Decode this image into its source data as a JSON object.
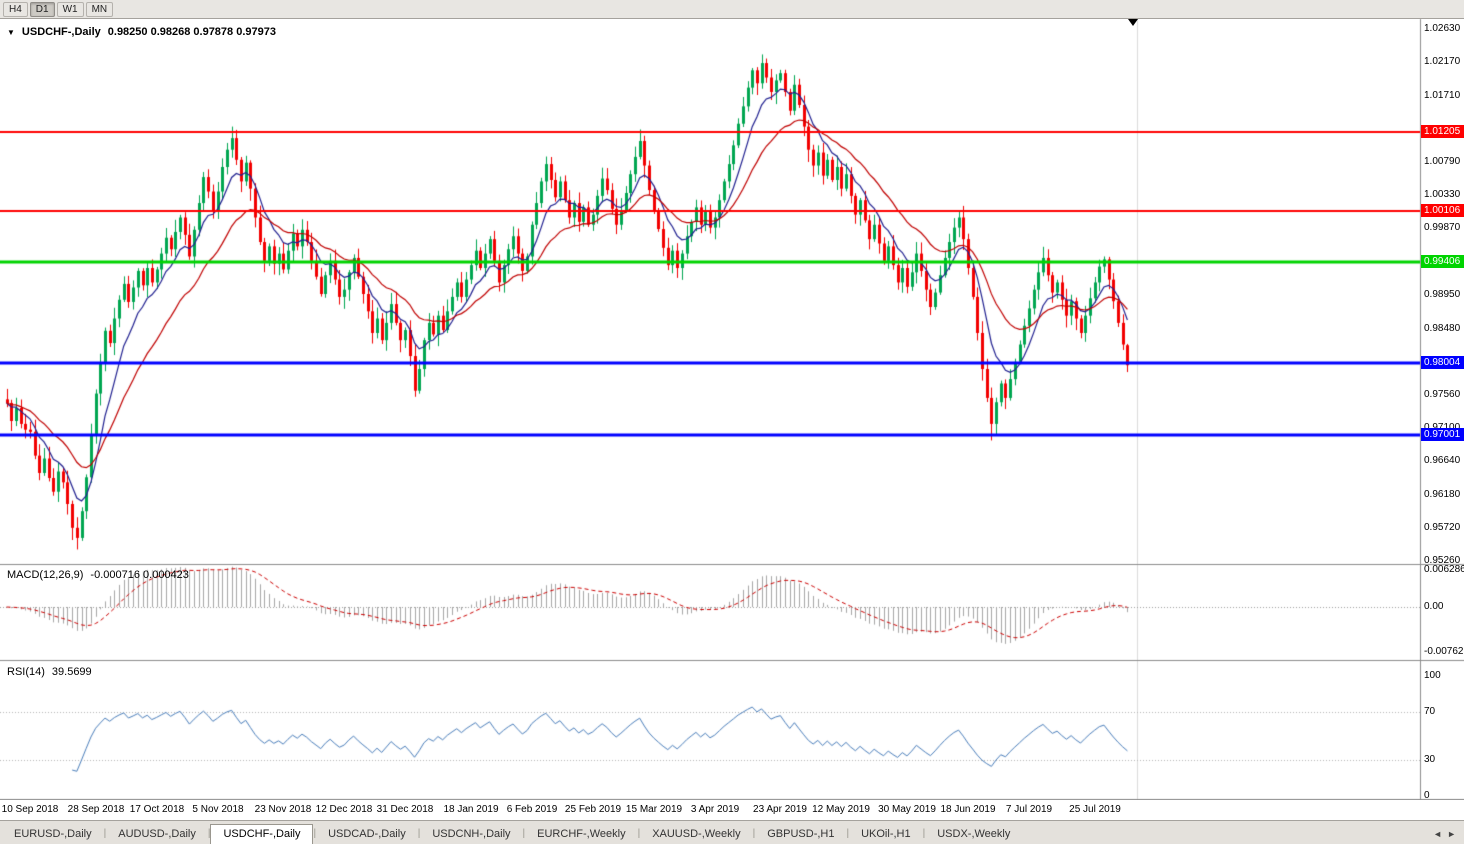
{
  "toolbar": {
    "buttons": [
      {
        "label": "H4",
        "active": false
      },
      {
        "label": "D1",
        "active": true
      },
      {
        "label": "W1",
        "active": false
      },
      {
        "label": "MN",
        "active": false
      }
    ]
  },
  "chart_header": {
    "collapse_icon": "▼",
    "symbol": "USDCHF-,Daily",
    "ohlc": "0.98250 0.98268 0.97878 0.97973"
  },
  "macd_panel": {
    "title": "MACD(12,26,9)",
    "values": "-0.000716 0.000423",
    "axis_labels": [
      "0.006286",
      "0.00",
      "-0.00762"
    ],
    "axis_values": [
      0.006286,
      0,
      -0.00762
    ]
  },
  "rsi_panel": {
    "title": "RSI(14)",
    "value": "39.5699",
    "axis_labels": [
      "100",
      "70",
      "30",
      "0"
    ],
    "axis_values": [
      100,
      70,
      30,
      0
    ]
  },
  "price_axis": {
    "labels": [
      "1.02630",
      "1.02170",
      "1.01710",
      "1.00790",
      "1.00330",
      "0.99870",
      "0.98950",
      "0.98480",
      "0.97560",
      "0.97100",
      "0.96640",
      "0.96180",
      "0.95720",
      "0.95260"
    ]
  },
  "date_axis": {
    "labels": [
      "10 Sep 2018",
      "28 Sep 2018",
      "17 Oct 2018",
      "5 Nov 2018",
      "23 Nov 2018",
      "12 Dec 2018",
      "31 Dec 2018",
      "18 Jan 2019",
      "6 Feb 2019",
      "25 Feb 2019",
      "15 Mar 2019",
      "3 Apr 2019",
      "23 Apr 2019",
      "12 May 2019",
      "30 May 2019",
      "18 Jun 2019",
      "7 Jul 2019",
      "25 Jul 2019"
    ]
  },
  "tabs": {
    "items": [
      {
        "label": "EURUSD-,Daily",
        "active": false
      },
      {
        "label": "AUDUSD-,Daily",
        "active": false
      },
      {
        "label": "USDCHF-,Daily",
        "active": true
      },
      {
        "label": "USDCAD-,Daily",
        "active": false
      },
      {
        "label": "USDCNH-,Daily",
        "active": false
      },
      {
        "label": "EURCHF-,Weekly",
        "active": false
      },
      {
        "label": "XAUUSD-,Weekly",
        "active": false
      },
      {
        "label": "GBPUSD-,H1",
        "active": false
      },
      {
        "label": "UKOil-,H1",
        "active": false
      },
      {
        "label": "USDX-,Weekly",
        "active": false
      }
    ],
    "scroll_left_icon": "◄",
    "scroll_right_icon": "►"
  },
  "chart_data": {
    "type": "candlestick",
    "symbol": "USDCHF",
    "timeframe": "Daily",
    "title": "USDCHF-,Daily",
    "first_open": 0.975,
    "closes": [
      0.9745,
      0.972,
      0.9738,
      0.9716,
      0.9708,
      0.9705,
      0.9672,
      0.9648,
      0.9668,
      0.9641,
      0.9622,
      0.965,
      0.9635,
      0.9605,
      0.9572,
      0.9558,
      0.9595,
      0.9642,
      0.97,
      0.9758,
      0.98,
      0.9845,
      0.9828,
      0.9862,
      0.9888,
      0.991,
      0.9885,
      0.9905,
      0.9928,
      0.9908,
      0.9932,
      0.9912,
      0.993,
      0.9952,
      0.9974,
      0.9958,
      0.9982,
      1.0002,
      0.9978,
      0.9948,
      0.9985,
      1.0022,
      1.0058,
      1.0038,
      1.0012,
      1.0038,
      1.0072,
      1.0096,
      1.0112,
      1.0082,
      1.0052,
      1.0078,
      1.0042,
      1.0002,
      0.9968,
      0.9942,
      0.9962,
      0.9938,
      0.9952,
      0.993,
      0.9956,
      0.998,
      0.9962,
      0.9985,
      0.9968,
      0.9942,
      0.992,
      0.9896,
      0.9922,
      0.9942,
      0.9916,
      0.9892,
      0.9902,
      0.9926,
      0.9946,
      0.992,
      0.9896,
      0.9872,
      0.9842,
      0.9862,
      0.9832,
      0.9856,
      0.9882,
      0.9856,
      0.9832,
      0.9846,
      0.981,
      0.9762,
      0.9792,
      0.9832,
      0.9856,
      0.984,
      0.9866,
      0.9846,
      0.9872,
      0.9892,
      0.9912,
      0.9892,
      0.9916,
      0.9936,
      0.9956,
      0.9932,
      0.9952,
      0.9972,
      0.9942,
      0.9912,
      0.9936,
      0.9958,
      0.9976,
      0.9952,
      0.9928,
      0.9948,
      0.9992,
      1.0022,
      1.0052,
      1.0076,
      1.0054,
      1.003,
      1.0052,
      1.0026,
      1.0002,
      1.0022,
      0.9996,
      1.0016,
      0.9992,
      1.0006,
      1.0032,
      1.0056,
      1.004,
      1.0014,
      0.9992,
      1.0012,
      1.0036,
      1.0062,
      1.0086,
      1.0108,
      1.0074,
      1.004,
      1.0012,
      0.9986,
      0.996,
      0.9936,
      0.9956,
      0.9932,
      0.9952,
      0.9976,
      0.9996,
      1.0016,
      0.9992,
      1.0012,
      0.9988,
      1.0002,
      1.0026,
      1.0052,
      1.0076,
      1.0102,
      1.0132,
      1.0156,
      1.0182,
      1.0206,
      1.0188,
      1.0216,
      1.0196,
      1.0176,
      1.0192,
      1.0202,
      1.0176,
      1.015,
      1.0186,
      1.0158,
      1.0128,
      1.0096,
      1.0074,
      1.0092,
      1.006,
      1.0082,
      1.0054,
      1.0072,
      1.0042,
      1.0062,
      1.0032,
      1.0006,
      1.0026,
      0.9998,
      0.9972,
      0.9992,
      0.9966,
      0.9942,
      0.9962,
      0.9936,
      0.9912,
      0.9932,
      0.9906,
      0.9926,
      0.9952,
      0.9928,
      0.9902,
      0.9878,
      0.9898,
      0.9922,
      0.9946,
      0.9968,
      0.9988,
      1.0002,
      0.9972,
      0.9932,
      0.9892,
      0.9842,
      0.9792,
      0.9752,
      0.9716,
      0.9746,
      0.9772,
      0.9752,
      0.9778,
      0.9802,
      0.9826,
      0.9852,
      0.9876,
      0.9902,
      0.9926,
      0.9946,
      0.9922,
      0.9898,
      0.9912,
      0.9888,
      0.9866,
      0.9886,
      0.9862,
      0.9842,
      0.9866,
      0.989,
      0.9912,
      0.9934,
      0.9944,
      0.9916,
      0.9886,
      0.9856,
      0.9826,
      0.97973
    ],
    "last_candle": {
      "open": 0.9825,
      "high": 0.98268,
      "low": 0.97878,
      "close": 0.97973
    },
    "wick_overrides": [
      {
        "i": 15,
        "low": 0.9542
      },
      {
        "i": 48,
        "high": 1.0128
      },
      {
        "i": 135,
        "high": 1.0124
      },
      {
        "i": 161,
        "high": 1.0228
      },
      {
        "i": 203,
        "high": 1.0011
      },
      {
        "i": 210,
        "low": 0.9693
      },
      {
        "i": 234,
        "high": 0.9948
      }
    ],
    "x_label_indices": [
      5,
      19,
      32,
      45,
      59,
      72,
      85,
      99,
      112,
      125,
      138,
      151,
      165,
      178,
      192,
      205,
      218,
      232
    ],
    "y_axis": {
      "min_label": 0.9526,
      "max_label": 1.0263,
      "tick_step": 0.0046
    },
    "hlines": [
      {
        "price": 1.01205,
        "label": "1.01205",
        "color": "#ff0000",
        "width": 2
      },
      {
        "price": 1.00106,
        "label": "1.00106",
        "color": "#ff0000",
        "width": 2
      },
      {
        "price": 0.99406,
        "label": "0.99406",
        "color": "#00d400",
        "width": 3
      },
      {
        "price": 0.98004,
        "label": "0.98004",
        "color": "#0000ff",
        "width": 3
      },
      {
        "price": 0.97001,
        "label": "0.97001",
        "color": "#0000ff",
        "width": 3
      }
    ],
    "moving_averages": [
      {
        "period": 8,
        "color": "#202090"
      },
      {
        "period": 21,
        "color": "#c00000"
      }
    ],
    "macd": {
      "fast": 12,
      "slow": 26,
      "signal": 9,
      "main_value": -0.000716,
      "signal_value": 0.000423,
      "hist_color": "#a6a6a6",
      "signal_color": "#cc0000"
    },
    "rsi": {
      "period": 14,
      "value": 39.5699,
      "color": "#4a7ebb",
      "levels": [
        70,
        30
      ]
    },
    "candle_colors": {
      "bull": "#00a651",
      "bear": "#f20000"
    }
  }
}
